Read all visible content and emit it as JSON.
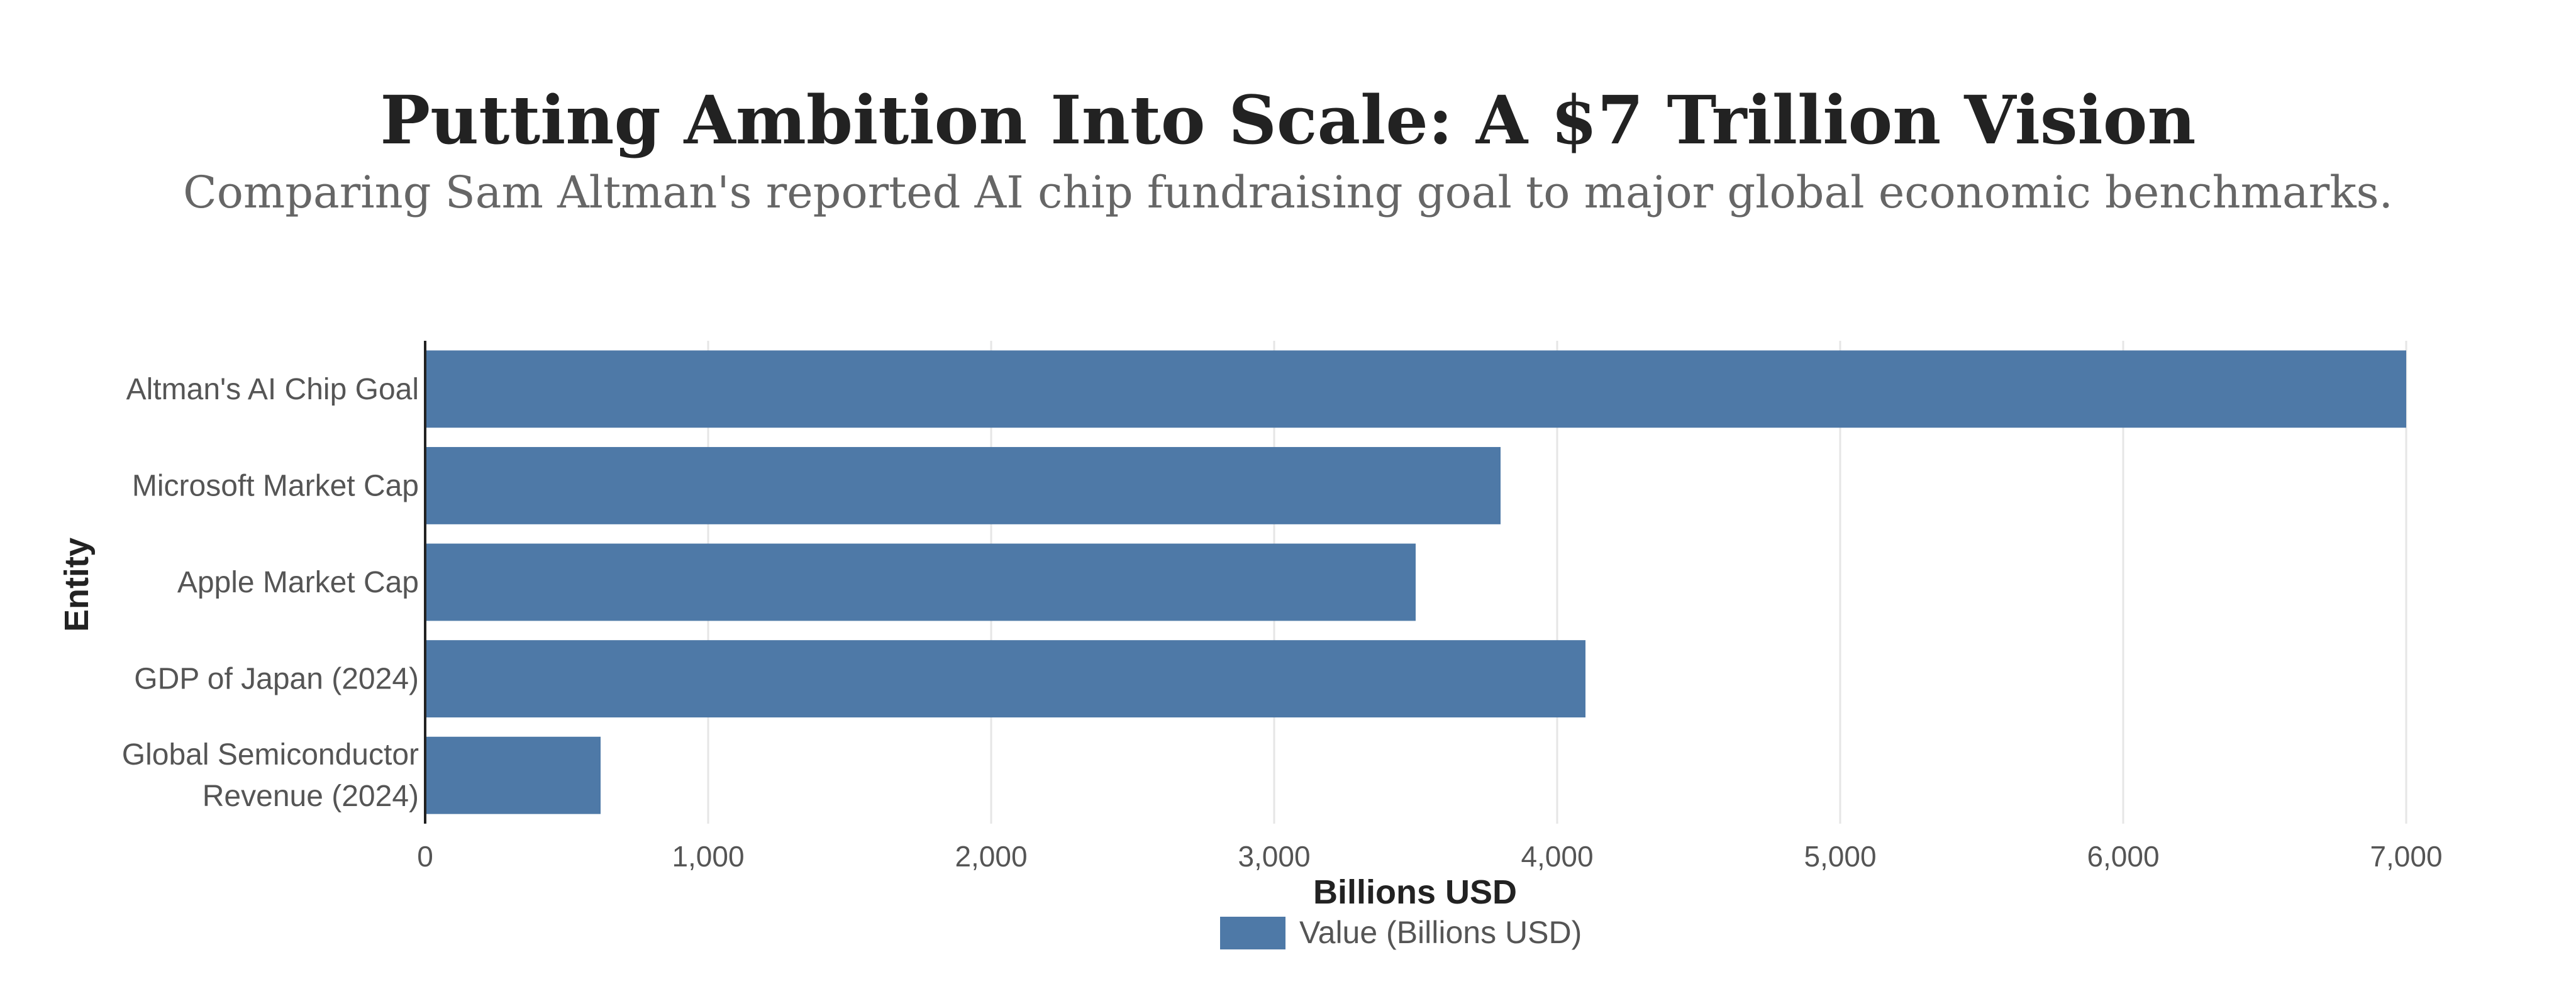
{
  "chart_data": {
    "type": "bar",
    "orientation": "horizontal",
    "title": "Putting Ambition Into Scale: A $7 Trillion Vision",
    "subtitle": "Comparing Sam Altman's reported AI chip fundraising goal to major global economic benchmarks.",
    "xlabel": "Billions USD",
    "ylabel": "Entity",
    "xlim": [
      0,
      7000
    ],
    "xticks": [
      0,
      1000,
      2000,
      3000,
      4000,
      5000,
      6000,
      7000
    ],
    "xtick_labels": [
      "0",
      "1,000",
      "2,000",
      "3,000",
      "4,000",
      "5,000",
      "6,000",
      "7,000"
    ],
    "categories": [
      [
        "Altman's AI Chip Goal"
      ],
      [
        "Microsoft Market Cap"
      ],
      [
        "Apple Market Cap"
      ],
      [
        "GDP of Japan (2024)"
      ],
      [
        "Global Semiconductor",
        "Revenue (2024)"
      ]
    ],
    "series": [
      {
        "name": "Value (Billions USD)",
        "color": "#4e79a7",
        "values": [
          7000,
          3800,
          3500,
          4100,
          620
        ]
      }
    ],
    "grid": true,
    "legend_position": "bottom-center"
  }
}
